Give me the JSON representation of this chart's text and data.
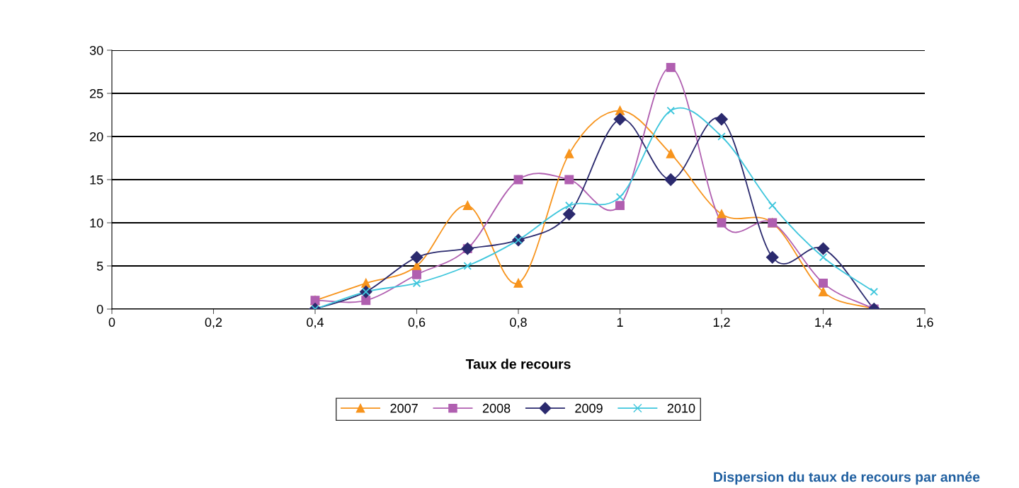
{
  "chart_data": {
    "type": "line",
    "title": "Dispersion du taux de recours par année",
    "xlabel": "Taux de recours",
    "x": [
      0.4,
      0.5,
      0.6,
      0.7,
      0.8,
      0.9,
      1.0,
      1.1,
      1.2,
      1.3,
      1.4,
      1.5
    ],
    "series": [
      {
        "name": "2007",
        "color": "#f7941d",
        "marker": "triangle",
        "values": [
          1,
          3,
          5,
          12,
          3,
          18,
          23,
          18,
          11,
          10,
          2,
          0
        ]
      },
      {
        "name": "2008",
        "color": "#b05fb0",
        "marker": "square",
        "values": [
          1,
          1,
          4,
          7,
          15,
          15,
          12,
          28,
          10,
          10,
          3,
          0
        ]
      },
      {
        "name": "2009",
        "color": "#2b2a6e",
        "marker": "diamond",
        "values": [
          0,
          2,
          6,
          7,
          8,
          11,
          22,
          15,
          22,
          6,
          7,
          0
        ]
      },
      {
        "name": "2010",
        "color": "#3fc6dc",
        "marker": "cross",
        "values": [
          0,
          2,
          3,
          5,
          8,
          12,
          13,
          23,
          20,
          12,
          6,
          2
        ]
      }
    ],
    "xlim": [
      0,
      1.6
    ],
    "xticks": [
      0,
      {
        "value": 0.2,
        "label": "0,2"
      },
      {
        "value": 0.4,
        "label": "0,4"
      },
      {
        "value": 0.6,
        "label": "0,6"
      },
      {
        "value": 0.8,
        "label": "0,8"
      },
      1,
      {
        "value": 1.2,
        "label": "1,2"
      },
      {
        "value": 1.4,
        "label": "1,4"
      },
      {
        "value": 1.6,
        "label": "1,6"
      }
    ],
    "ylim": [
      0,
      30
    ],
    "yticks": [
      0,
      5,
      10,
      15,
      20,
      25,
      30
    ],
    "grid": "y",
    "legend": "bottom",
    "line_style": "solid"
  }
}
